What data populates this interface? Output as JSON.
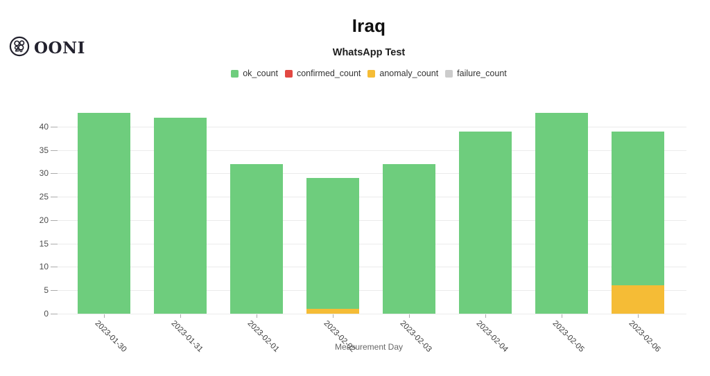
{
  "header": {
    "logo_text": "OONI",
    "title": "Iraq",
    "subtitle": "WhatsApp Test"
  },
  "legend": {
    "items": [
      {
        "label": "ok_count",
        "color": "#6ecd7d"
      },
      {
        "label": "confirmed_count",
        "color": "#e24842"
      },
      {
        "label": "anomaly_count",
        "color": "#f5bc36"
      },
      {
        "label": "failure_count",
        "color": "#cccccc"
      }
    ]
  },
  "chart_data": {
    "type": "bar",
    "stacked": true,
    "title": "Iraq",
    "subtitle": "WhatsApp Test",
    "xlabel": "Measurement Day",
    "ylabel": "",
    "categories": [
      "2023-01-30",
      "2023-01-31",
      "2023-02-01",
      "2023-02-02",
      "2023-02-03",
      "2023-02-04",
      "2023-02-05",
      "2023-02-06"
    ],
    "series": [
      {
        "name": "ok_count",
        "color": "#6ecd7d",
        "values": [
          43,
          42,
          32,
          28,
          32,
          39,
          43,
          33
        ]
      },
      {
        "name": "confirmed_count",
        "color": "#e24842",
        "values": [
          0,
          0,
          0,
          0,
          0,
          0,
          0,
          0
        ]
      },
      {
        "name": "anomaly_count",
        "color": "#f5bc36",
        "values": [
          0,
          0,
          0,
          1,
          0,
          0,
          0,
          6
        ]
      },
      {
        "name": "failure_count",
        "color": "#cccccc",
        "values": [
          0,
          0,
          0,
          0,
          0,
          0,
          0,
          0
        ]
      }
    ],
    "totals": [
      43,
      42,
      32,
      29,
      32,
      39,
      43,
      39
    ],
    "stack_order_bottom_to_top": [
      "failure_count",
      "anomaly_count",
      "confirmed_count",
      "ok_count"
    ],
    "ylim": [
      0,
      45
    ],
    "y_ticks": [
      0,
      5,
      10,
      15,
      20,
      25,
      30,
      35,
      40
    ],
    "grid": true,
    "legend_position": "top"
  }
}
